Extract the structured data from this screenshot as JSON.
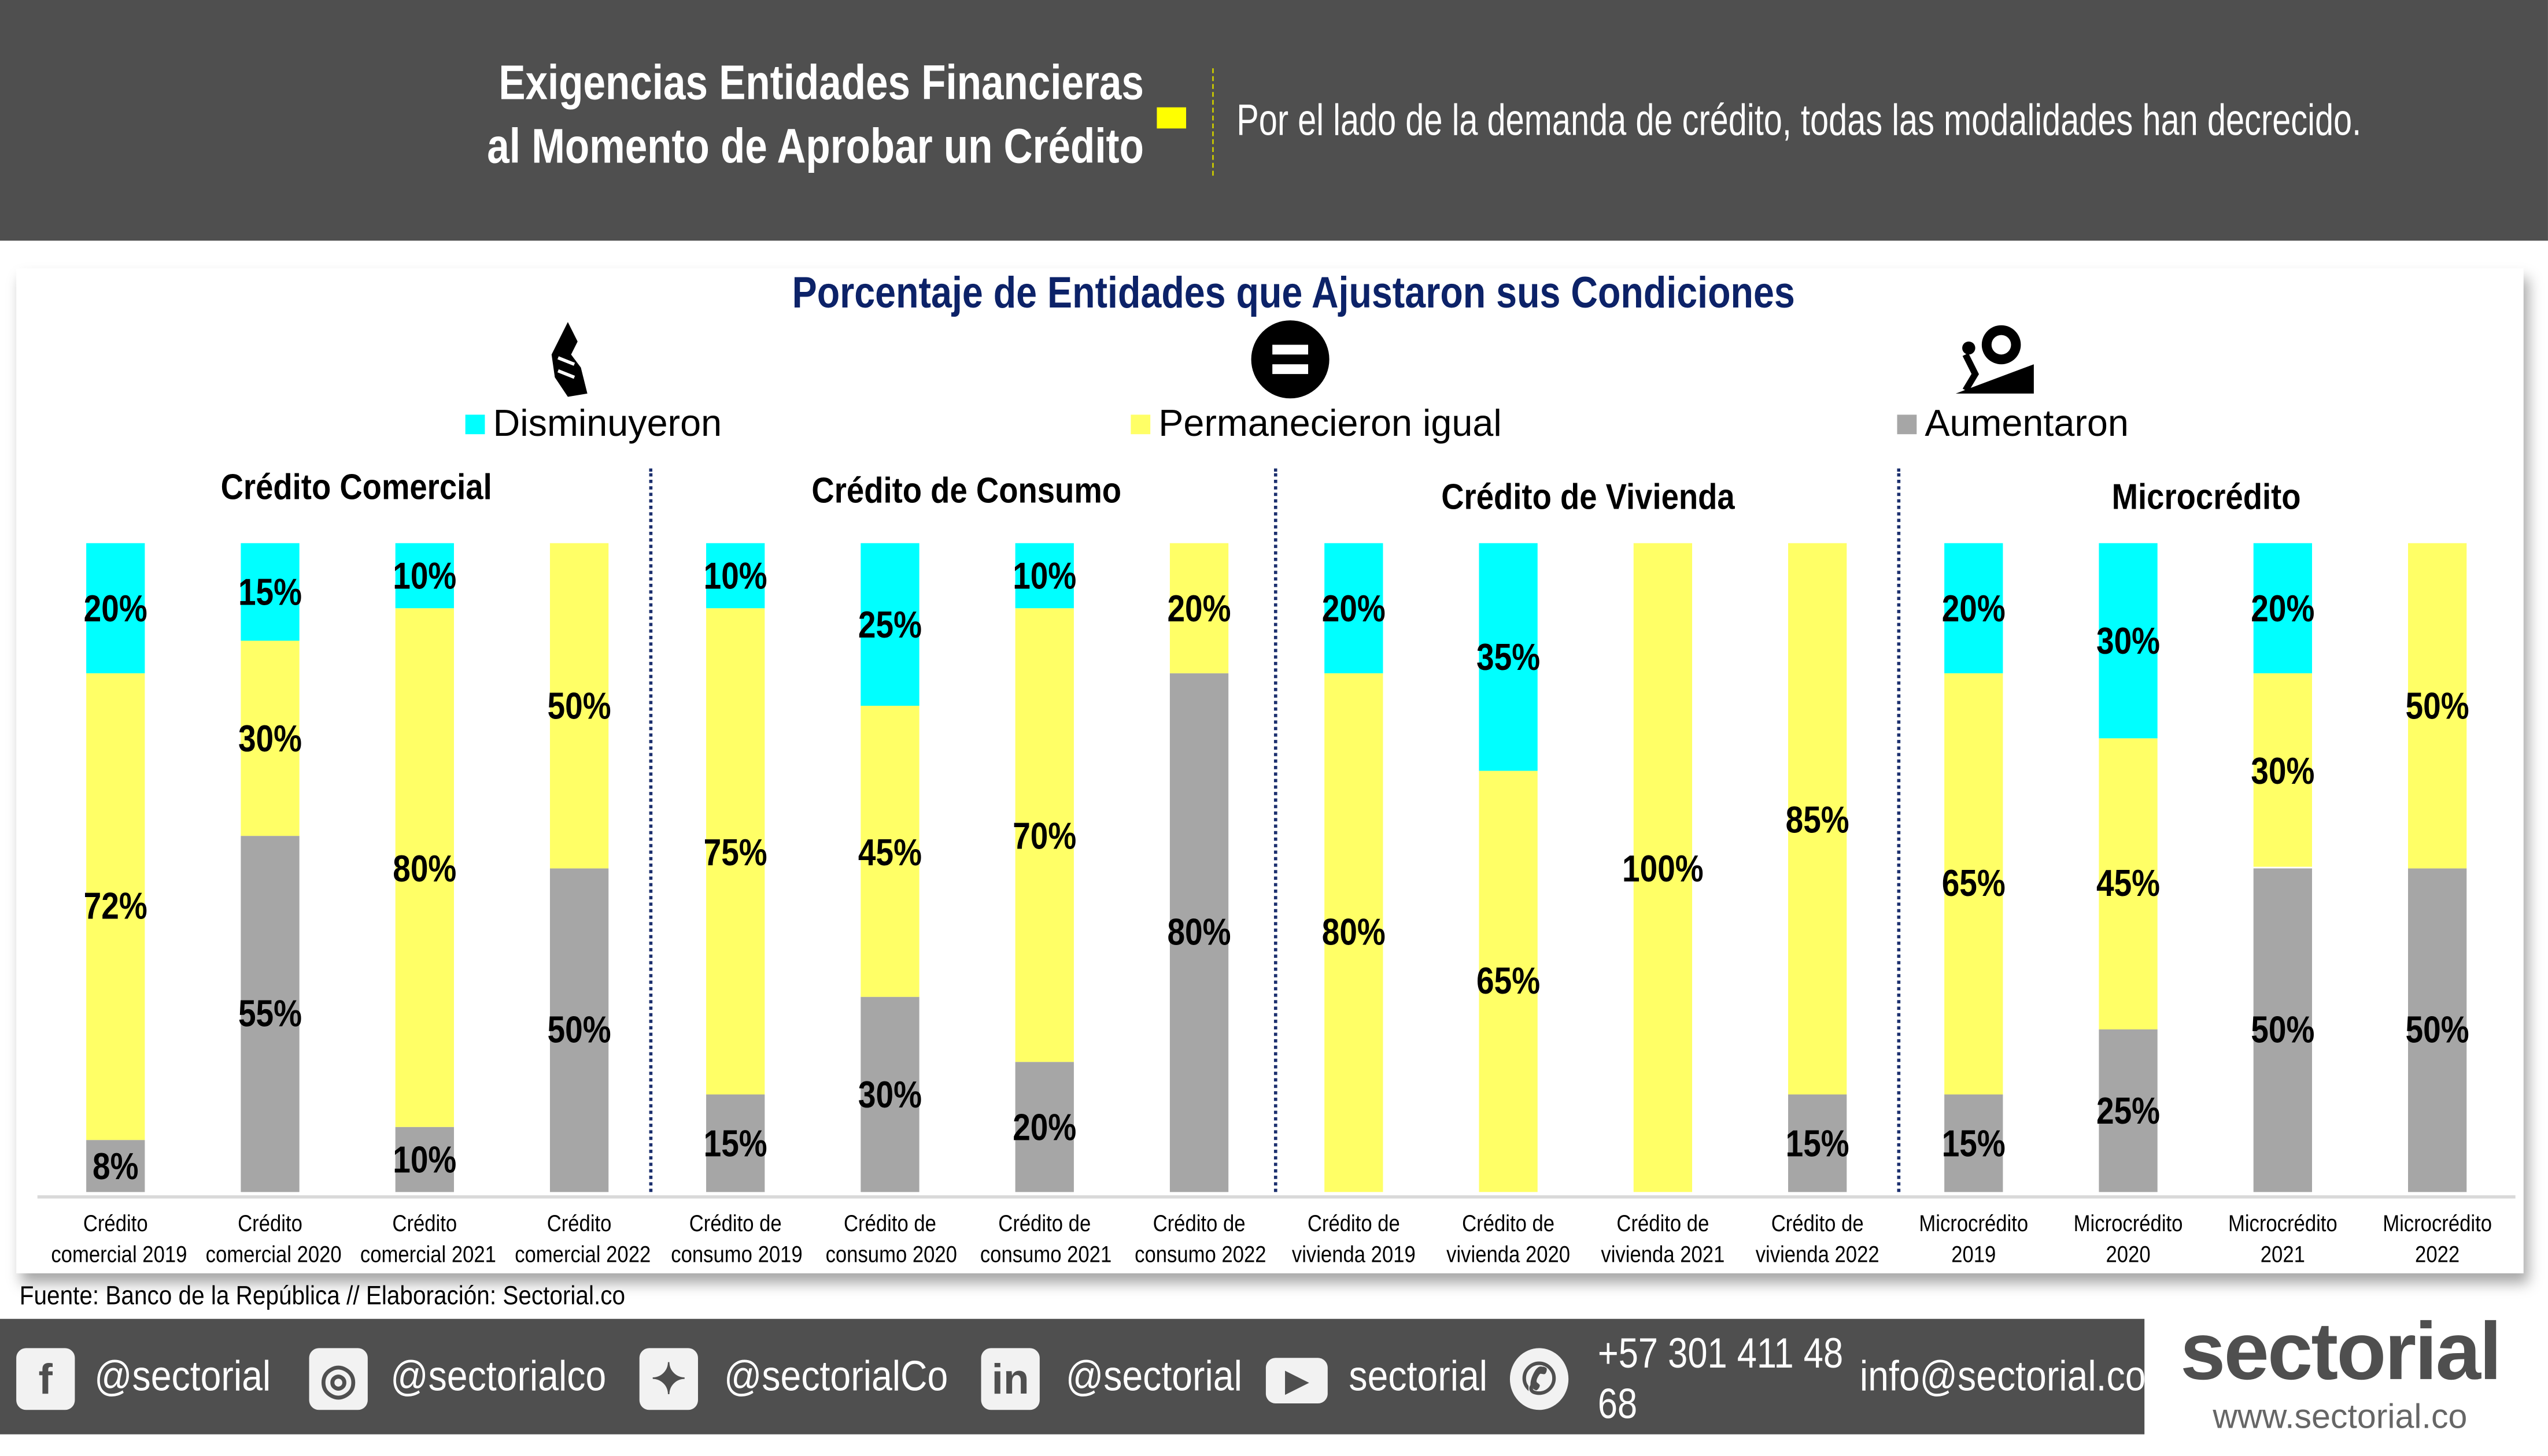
{
  "header": {
    "title_line1": "Exigencias Entidades Financieras",
    "title_line2": "al Momento de Aprobar un Crédito",
    "subtitle": "Por el lado de la demanda de crédito, todas las modalidades han decrecido."
  },
  "chart_data": {
    "type": "bar",
    "stacked": true,
    "title": "Porcentaje de Entidades que Ajustaron sus Condiciones",
    "ylim": [
      0,
      100
    ],
    "groups": [
      "Crédito Comercial",
      "Crédito de Consumo",
      "Crédito de Vivienda",
      "Microcrédito"
    ],
    "categories": [
      [
        "Crédito",
        "comercial 2019"
      ],
      [
        "Crédito",
        "comercial 2020"
      ],
      [
        "Crédito",
        "comercial 2021"
      ],
      [
        "Crédito",
        "comercial 2022"
      ],
      [
        "Crédito de",
        "consumo 2019"
      ],
      [
        "Crédito de",
        "consumo 2020"
      ],
      [
        "Crédito de",
        "consumo 2021"
      ],
      [
        "Crédito de",
        "consumo 2022"
      ],
      [
        "Crédito de",
        "vivienda 2019"
      ],
      [
        "Crédito de",
        "vivienda 2020"
      ],
      [
        "Crédito de",
        "vivienda 2021"
      ],
      [
        "Crédito de",
        "vivienda 2022"
      ],
      [
        "Microcrédito",
        "2019"
      ],
      [
        "Microcrédito",
        "2020"
      ],
      [
        "Microcrédito",
        "2021"
      ],
      [
        "Microcrédito",
        "2022"
      ]
    ],
    "series": [
      {
        "name": "Aumentaron",
        "color": "#a6a6a6",
        "values": [
          8,
          55,
          10,
          50,
          15,
          30,
          20,
          80,
          0,
          0,
          0,
          15,
          15,
          25,
          50,
          50
        ]
      },
      {
        "name": "Permanecieron igual",
        "color": "#ffff66",
        "values": [
          72,
          30,
          80,
          50,
          75,
          45,
          70,
          20,
          80,
          65,
          100,
          85,
          65,
          45,
          30,
          50
        ]
      },
      {
        "name": "Disminuyeron",
        "color": "#00ffff",
        "values": [
          20,
          15,
          10,
          0,
          10,
          25,
          10,
          0,
          20,
          35,
          0,
          0,
          20,
          30,
          20,
          0
        ]
      }
    ],
    "legend": [
      "Disminuyeron",
      "Permanecieron igual",
      "Aumentaron"
    ],
    "legend_placement": "top",
    "grid": false
  },
  "source": "Fuente: Banco de la República // Elaboración: Sectorial.co",
  "footer": {
    "facebook": "@sectorial",
    "instagram": "@sectorialco",
    "twitter": "@sectorialCo",
    "linkedin": "@sectorial",
    "youtube": "sectorial",
    "whatsapp_line1": "+57 301 411 48",
    "whatsapp_line2": "68",
    "email": "info@sectorial.co",
    "logo": "sectorial",
    "url": "www.sectorial.co"
  }
}
